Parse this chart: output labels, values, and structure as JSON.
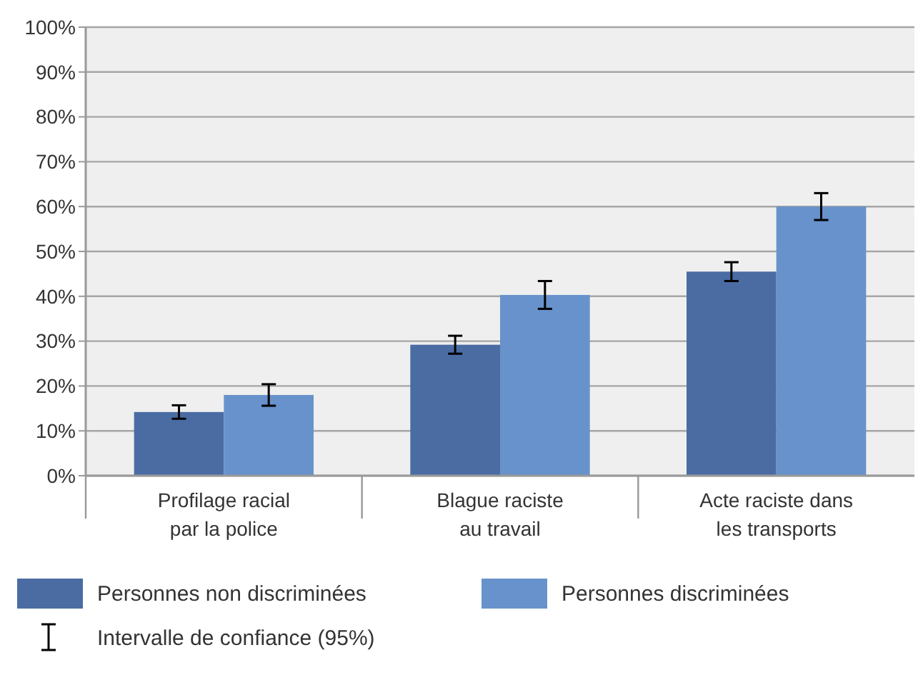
{
  "chart_data": {
    "type": "bar",
    "categories": [
      "Profilage racial par la police",
      "Blague raciste au travail",
      "Acte raciste dans les transports"
    ],
    "series": [
      {
        "name": "Personnes non discriminées",
        "color": "#4a6ca3",
        "values": [
          14.2,
          29.2,
          45.5
        ],
        "errors": [
          1.5,
          2,
          2.1
        ]
      },
      {
        "name": "Personnes discriminées",
        "color": "#6892cb",
        "values": [
          18,
          40.3,
          60
        ],
        "errors": [
          2.4,
          3.1,
          3
        ]
      }
    ],
    "ylim": [
      0,
      100
    ],
    "yticks": [
      {
        "value": 0,
        "label": "0%"
      },
      {
        "value": 10,
        "label": "10%"
      },
      {
        "value": 20,
        "label": "20%"
      },
      {
        "value": 30,
        "label": "30%"
      },
      {
        "value": 40,
        "label": "40%"
      },
      {
        "value": 50,
        "label": "50%"
      },
      {
        "value": 60,
        "label": "60%"
      },
      {
        "value": 70,
        "label": "70%"
      },
      {
        "value": 80,
        "label": "80%"
      },
      {
        "value": 90,
        "label": "90%"
      },
      {
        "value": 100,
        "label": "100%"
      }
    ],
    "grid": "y",
    "legend": "bottom",
    "annotations": [
      "Intervalle de confiance (95%)"
    ]
  }
}
